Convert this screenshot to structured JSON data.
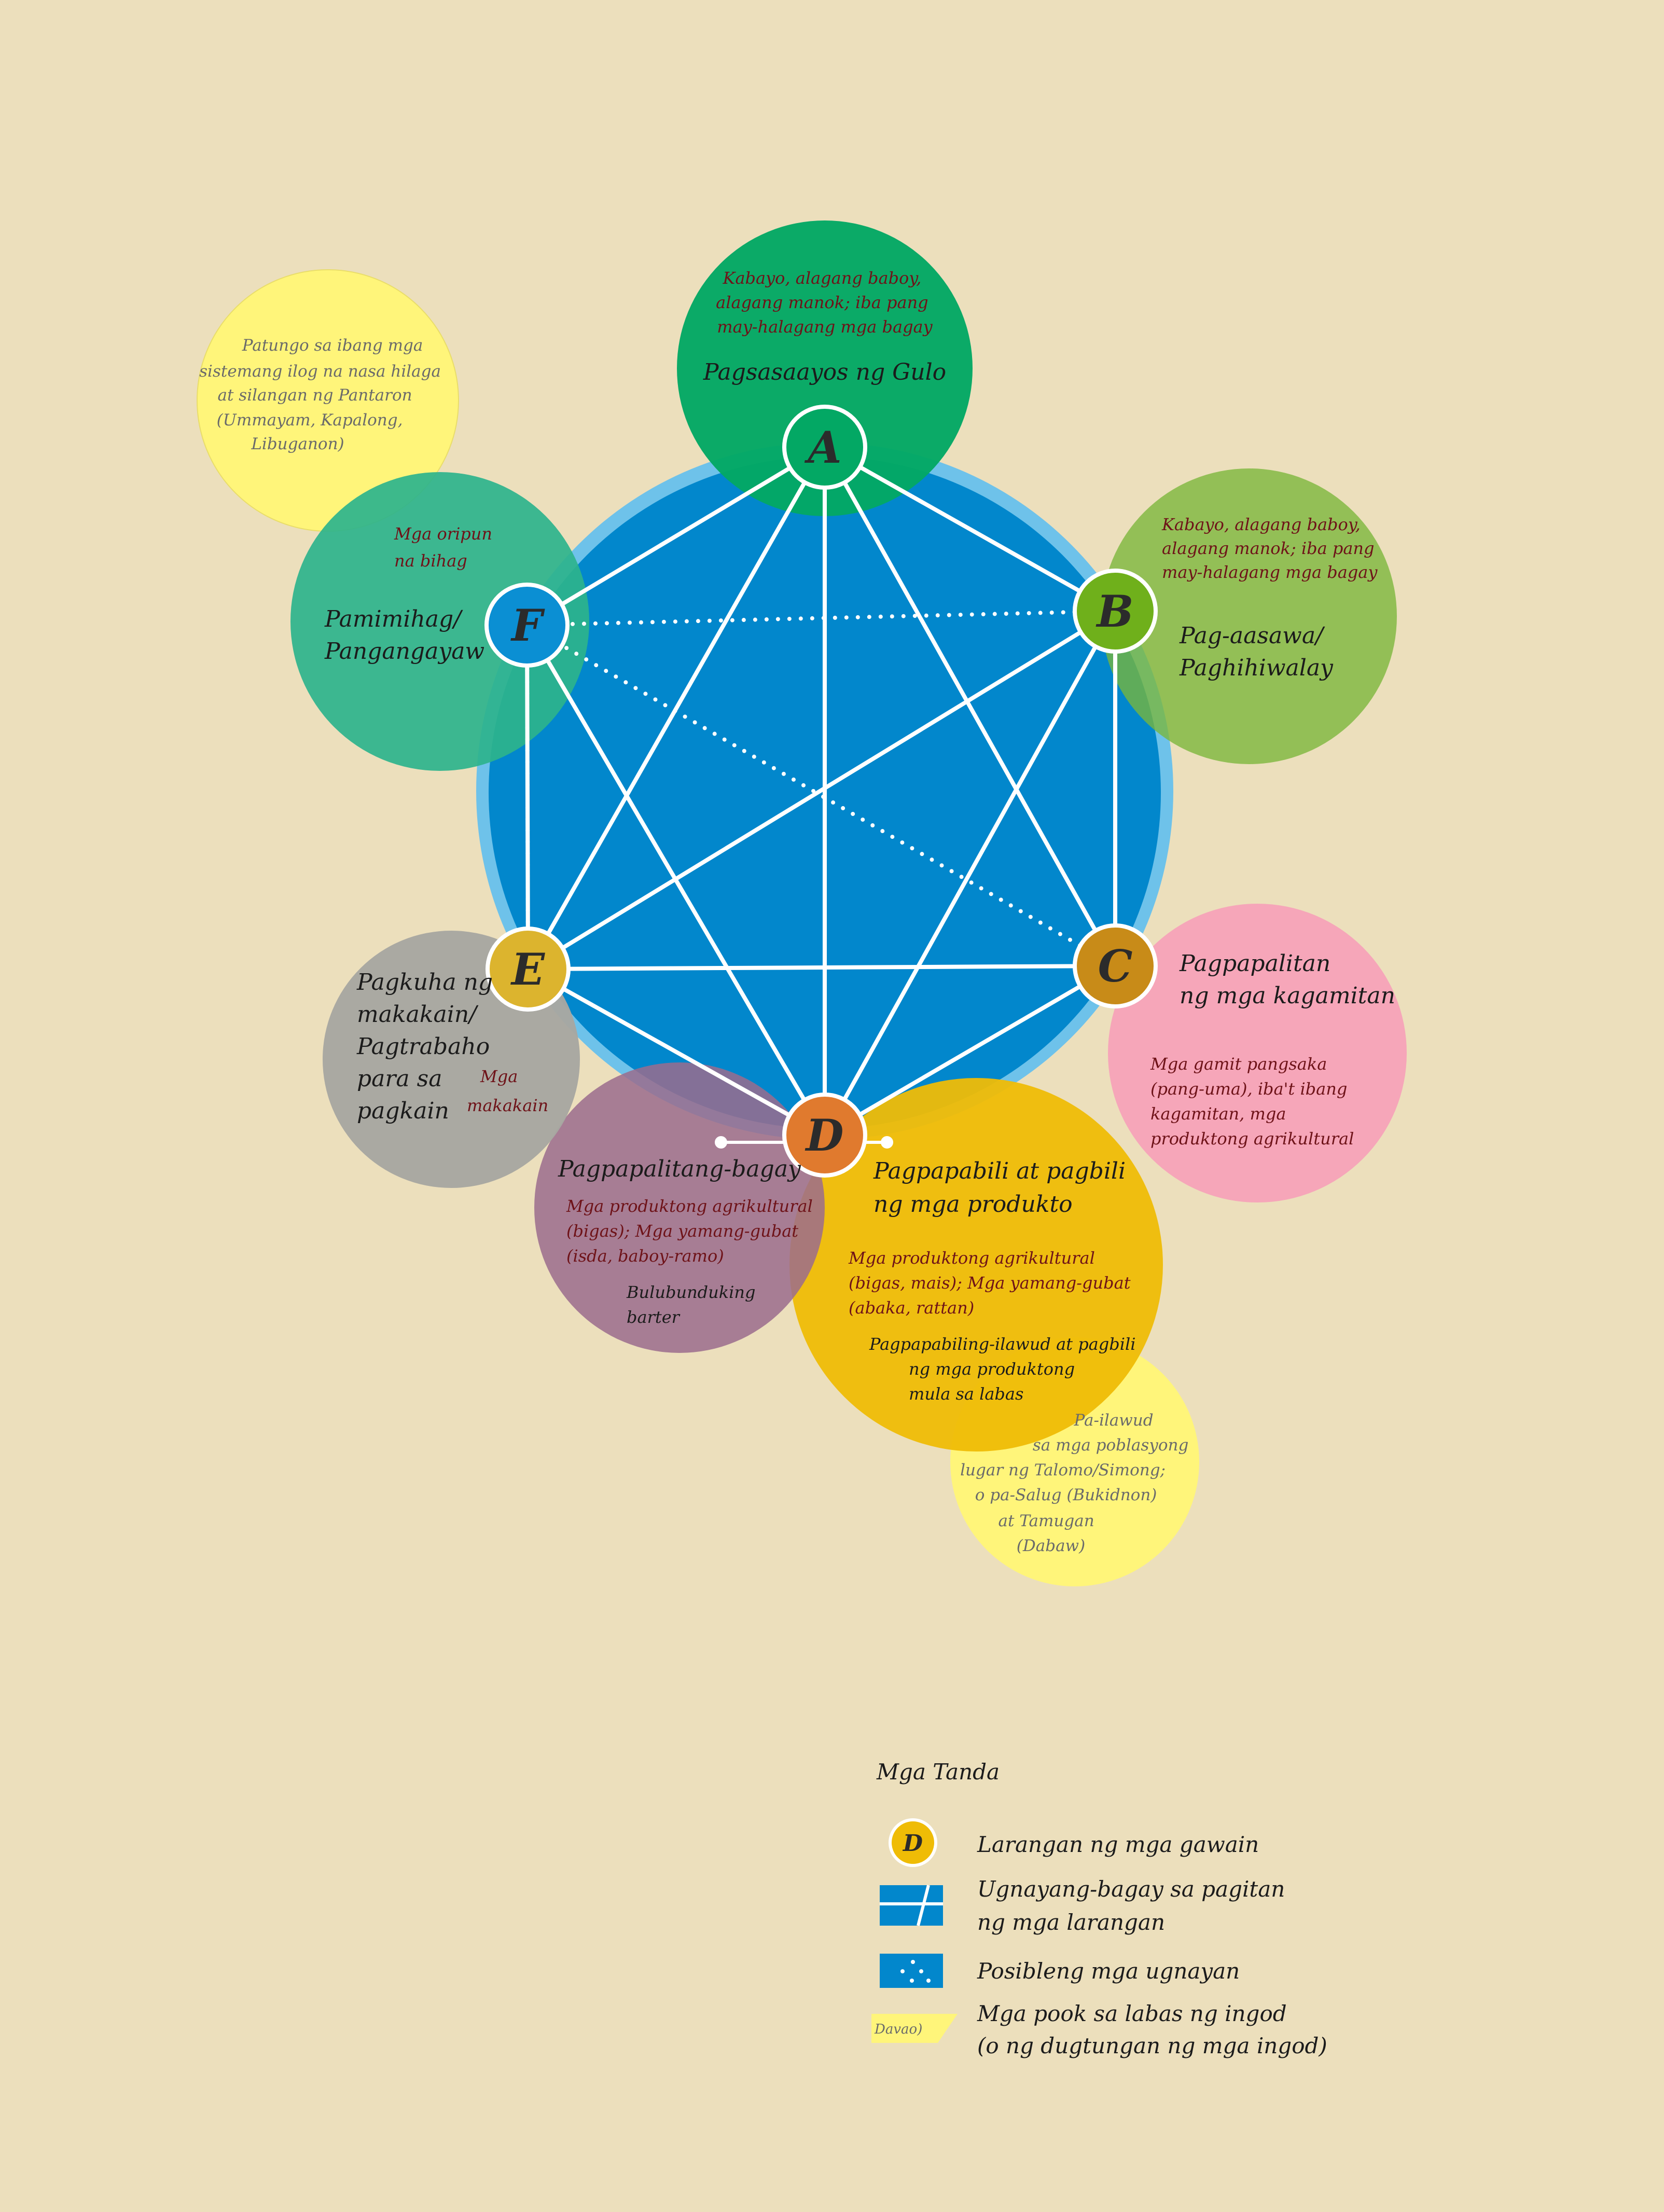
{
  "colors": {
    "background": "#ecdfbc",
    "hexagon_disc": "#0287cc",
    "disc_ring": "#6ec2ea",
    "A": "#03a864",
    "B": "#7ab63a",
    "C": "#f7a2b8",
    "D": "#efbc06",
    "E": "#a7a7a1",
    "F": "#2db38c",
    "outside_area": "#fff57a",
    "barter": "#9b6c8d"
  },
  "nodes": {
    "A": {
      "letter": "A",
      "title": "Pagsasaayos ng Gulo",
      "details": [
        "Kabayo, alagang baboy,",
        "alagang manok; iba pang",
        "may-halagang mga bagay"
      ]
    },
    "B": {
      "letter": "B",
      "title": [
        "Pag-aasawa/",
        "Paghihiwalay"
      ],
      "details": [
        "Kabayo, alagang baboy,",
        "alagang manok; iba pang",
        "may-halagang mga bagay"
      ]
    },
    "C": {
      "letter": "C",
      "title": [
        "Pagpapalitan",
        "ng mga kagamitan"
      ],
      "details": [
        "Mga gamit pangsaka",
        "(pang-uma), iba't ibang",
        "kagamitan, mga",
        "produktong agrikultural"
      ]
    },
    "D": {
      "letter": "D",
      "title": [
        "Pagpapabili at pagbili",
        "ng mga produkto"
      ],
      "details": [
        "Mga produktong agrikultural",
        "(bigas, mais); Mga yamang-gubat",
        "(abaka, rattan)"
      ],
      "sub": [
        "Pagpapabiling-ilawud at pagbili",
        "ng mga produktong",
        "mula sa labas"
      ]
    },
    "E": {
      "letter": "E",
      "title": [
        "Pagkuha ng",
        "makakain/",
        "Pagtrabaho",
        "para sa",
        "pagkain"
      ],
      "details": [
        "Mga",
        "makakain"
      ]
    },
    "F": {
      "letter": "F",
      "title": [
        "Pamimihag/",
        "Pangangayaw"
      ],
      "details": [
        "Mga oripun",
        "na bihag"
      ]
    }
  },
  "barter": {
    "title": "Pagpapalitang-bagay",
    "details": [
      "Mga produktong agrikultural",
      "(bigas); Mga yamang-gubat",
      "(isda, baboy-ramo)"
    ],
    "sub": [
      "Bulubunduking",
      "barter"
    ]
  },
  "outside_areas": {
    "north": [
      "Patungo sa ibang mga",
      "sistemang ilog na nasa hilaga",
      "at silangan ng Pantaron",
      "(Ummayam, Kapalong,",
      "Libuganon)"
    ],
    "south": [
      "Pa-ilawud",
      "sa mga poblasyong",
      "lugar ng Talomo/Simong;",
      "o pa-Salug (Bukidnon)",
      "at Tamugan",
      "(Dabaw)"
    ]
  },
  "legend": {
    "title": "Mga Tanda",
    "sample_letter": "D",
    "sample_area_label": "Davao)",
    "items": [
      [
        "Larangan ng mga gawain"
      ],
      [
        "Ugnayang-bagay sa pagitan",
        "ng mga larangan"
      ],
      [
        "Posibleng mga ugnayan"
      ],
      [
        "Mga pook sa labas ng ingod",
        "(o ng dugtungan ng mga ingod)"
      ]
    ]
  }
}
